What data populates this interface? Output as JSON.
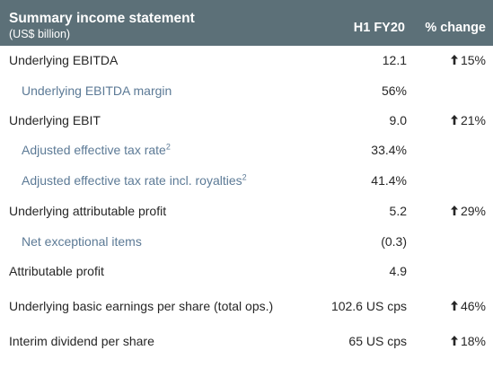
{
  "header": {
    "title": "Summary income statement",
    "subtitle": "(US$ billion)",
    "col_period": "H1 FY20",
    "col_change": "% change"
  },
  "rows": [
    {
      "label": "Underlying EBITDA",
      "footnote": "",
      "value": "12.1",
      "change": "15%",
      "arrow": "arrow-up-icon"
    },
    {
      "label": "Underlying EBITDA margin",
      "footnote": "",
      "value": "56%",
      "change": "",
      "arrow": ""
    },
    {
      "label": "Underlying EBIT",
      "footnote": "",
      "value": "9.0",
      "change": "21%",
      "arrow": "arrow-up-icon"
    },
    {
      "label": "Adjusted effective tax rate",
      "footnote": "2",
      "value": "33.4%",
      "change": "",
      "arrow": ""
    },
    {
      "label": "Adjusted effective tax rate incl. royalties",
      "footnote": "2",
      "value": "41.4%",
      "change": "",
      "arrow": ""
    },
    {
      "label": "Underlying attributable profit",
      "footnote": "",
      "value": "5.2",
      "change": "29%",
      "arrow": "arrow-up-icon"
    },
    {
      "label": "Net exceptional items",
      "footnote": "",
      "value": "(0.3)",
      "change": "",
      "arrow": ""
    },
    {
      "label": "Attributable profit",
      "footnote": "",
      "value": "4.9",
      "change": "",
      "arrow": ""
    },
    {
      "label": "Underlying basic earnings per share (total ops.)",
      "footnote": "",
      "value": "102.6 US cps",
      "change": "46%",
      "arrow": "arrow-up-icon"
    },
    {
      "label": "Interim dividend per share",
      "footnote": "",
      "value": "65 US cps",
      "change": "18%",
      "arrow": "arrow-up-icon"
    }
  ],
  "colors": {
    "header_bg": "#5c7078",
    "main_text": "#262626",
    "sub_text": "#5c7a96"
  }
}
